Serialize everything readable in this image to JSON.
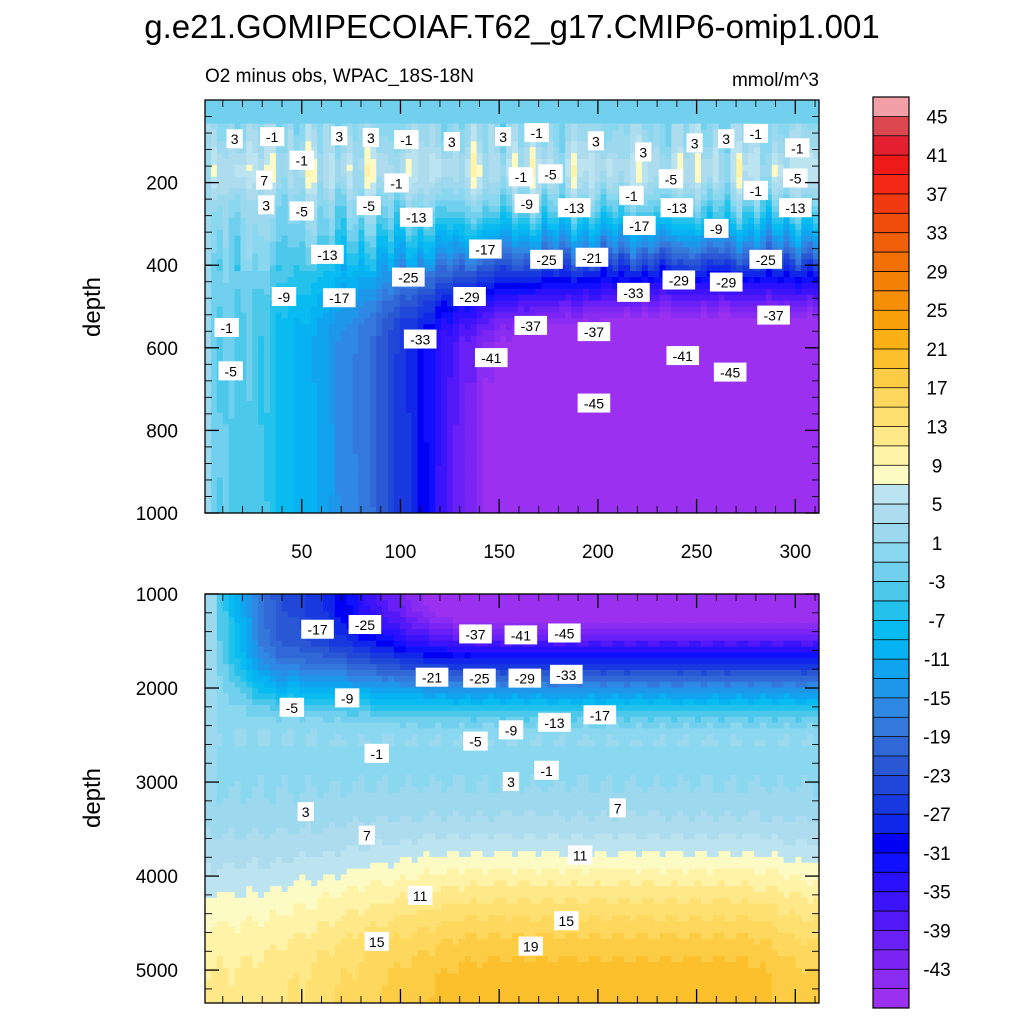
{
  "chart_data": {
    "type": "contour",
    "title": "g.e21.GOMIPECOIAF.T62_g17.CMIP6-omip1.001",
    "subtitle_left": "O2 minus obs, WPAC_18S-18N",
    "subtitle_right": "mmol/m^3",
    "ylabel": "depth",
    "colorbar": {
      "labels": [
        "45",
        "41",
        "37",
        "33",
        "29",
        "25",
        "21",
        "17",
        "13",
        "9",
        "5",
        "1",
        "-3",
        "-7",
        "-11",
        "-15",
        "-19",
        "-23",
        "-27",
        "-31",
        "-35",
        "-39",
        "-43"
      ],
      "label_values": [
        45,
        41,
        37,
        33,
        29,
        25,
        21,
        17,
        13,
        9,
        5,
        1,
        -3,
        -7,
        -11,
        -15,
        -19,
        -23,
        -27,
        -31,
        -35,
        -39,
        -43
      ],
      "level_min": -47,
      "level_max": 47,
      "level_step": 2
    },
    "panels": [
      {
        "name": "upper",
        "ylim": [
          0,
          1000
        ],
        "yticks": [
          "200",
          "400",
          "600",
          "800",
          "1000"
        ],
        "ytick_values": [
          200,
          400,
          600,
          800,
          1000
        ],
        "xlim": [
          1,
          312
        ],
        "xticks": [
          "50",
          "100",
          "150",
          "200",
          "250",
          "300"
        ],
        "xtick_values": [
          50,
          100,
          150,
          200,
          250,
          300
        ],
        "contour_labels": [
          {
            "text": "3",
            "x": 16,
            "y": 95
          },
          {
            "text": "-1",
            "x": 35,
            "y": 90
          },
          {
            "text": "3",
            "x": 69,
            "y": 88
          },
          {
            "text": "3",
            "x": 85,
            "y": 92
          },
          {
            "text": "-1",
            "x": 103,
            "y": 97
          },
          {
            "text": "3",
            "x": 126,
            "y": 102
          },
          {
            "text": "3",
            "x": 152,
            "y": 90
          },
          {
            "text": "-1",
            "x": 169,
            "y": 80
          },
          {
            "text": "3",
            "x": 199,
            "y": 100
          },
          {
            "text": "3",
            "x": 223,
            "y": 127
          },
          {
            "text": "3",
            "x": 249,
            "y": 105
          },
          {
            "text": "3",
            "x": 265,
            "y": 95
          },
          {
            "text": "-1",
            "x": 280,
            "y": 82
          },
          {
            "text": "-1",
            "x": 301,
            "y": 117
          },
          {
            "text": "-1",
            "x": 50,
            "y": 147
          },
          {
            "text": "7",
            "x": 31,
            "y": 195
          },
          {
            "text": "3",
            "x": 32,
            "y": 255
          },
          {
            "text": "-1",
            "x": 98,
            "y": 202
          },
          {
            "text": "-1",
            "x": 161,
            "y": 187
          },
          {
            "text": "-5",
            "x": 176,
            "y": 180
          },
          {
            "text": "-5",
            "x": 237,
            "y": 192
          },
          {
            "text": "-1",
            "x": 217,
            "y": 232
          },
          {
            "text": "-1",
            "x": 280,
            "y": 220
          },
          {
            "text": "-5",
            "x": 300,
            "y": 190
          },
          {
            "text": "-5",
            "x": 50,
            "y": 270
          },
          {
            "text": "-5",
            "x": 84,
            "y": 257
          },
          {
            "text": "-9",
            "x": 164,
            "y": 252
          },
          {
            "text": "-13",
            "x": 188,
            "y": 262
          },
          {
            "text": "-13",
            "x": 108,
            "y": 285
          },
          {
            "text": "-13",
            "x": 240,
            "y": 262
          },
          {
            "text": "-13",
            "x": 300,
            "y": 262
          },
          {
            "text": "-17",
            "x": 143,
            "y": 362
          },
          {
            "text": "-17",
            "x": 221,
            "y": 305
          },
          {
            "text": "-9",
            "x": 260,
            "y": 312
          },
          {
            "text": "-13",
            "x": 63,
            "y": 375
          },
          {
            "text": "-21",
            "x": 197,
            "y": 382
          },
          {
            "text": "-25",
            "x": 174,
            "y": 387
          },
          {
            "text": "-25",
            "x": 285,
            "y": 387
          },
          {
            "text": "-25",
            "x": 104,
            "y": 430
          },
          {
            "text": "-29",
            "x": 135,
            "y": 477
          },
          {
            "text": "-33",
            "x": 218,
            "y": 467
          },
          {
            "text": "-29",
            "x": 241,
            "y": 437
          },
          {
            "text": "-29",
            "x": 265,
            "y": 442
          },
          {
            "text": "-9",
            "x": 41,
            "y": 477
          },
          {
            "text": "-17",
            "x": 69,
            "y": 480
          },
          {
            "text": "-37",
            "x": 166,
            "y": 547
          },
          {
            "text": "-37",
            "x": 198,
            "y": 562
          },
          {
            "text": "-37",
            "x": 289,
            "y": 522
          },
          {
            "text": "-1",
            "x": 12,
            "y": 552
          },
          {
            "text": "-33",
            "x": 110,
            "y": 580
          },
          {
            "text": "-41",
            "x": 146,
            "y": 625
          },
          {
            "text": "-41",
            "x": 243,
            "y": 620
          },
          {
            "text": "-45",
            "x": 267,
            "y": 660
          },
          {
            "text": "-5",
            "x": 14,
            "y": 657
          },
          {
            "text": "-45",
            "x": 198,
            "y": 735
          }
        ]
      },
      {
        "name": "lower",
        "ylim": [
          1000,
          5350
        ],
        "yticks": [
          "1000",
          "2000",
          "3000",
          "4000",
          "5000"
        ],
        "ytick_values": [
          1000,
          2000,
          3000,
          4000,
          5000
        ],
        "xlim": [
          1,
          312
        ],
        "contour_labels": [
          {
            "text": "-17",
            "x": 58,
            "y": 1380
          },
          {
            "text": "-25",
            "x": 82,
            "y": 1330
          },
          {
            "text": "-37",
            "x": 138,
            "y": 1430
          },
          {
            "text": "-41",
            "x": 161,
            "y": 1440
          },
          {
            "text": "-45",
            "x": 183,
            "y": 1420
          },
          {
            "text": "-21",
            "x": 116,
            "y": 1890
          },
          {
            "text": "-25",
            "x": 140,
            "y": 1900
          },
          {
            "text": "-29",
            "x": 163,
            "y": 1900
          },
          {
            "text": "-33",
            "x": 184,
            "y": 1860
          },
          {
            "text": "-5",
            "x": 45,
            "y": 2210
          },
          {
            "text": "-9",
            "x": 73,
            "y": 2110
          },
          {
            "text": "-9",
            "x": 156,
            "y": 2450
          },
          {
            "text": "-13",
            "x": 178,
            "y": 2370
          },
          {
            "text": "-17",
            "x": 201,
            "y": 2290
          },
          {
            "text": "-5",
            "x": 138,
            "y": 2570
          },
          {
            "text": "-1",
            "x": 88,
            "y": 2700
          },
          {
            "text": "-1",
            "x": 174,
            "y": 2880
          },
          {
            "text": "3",
            "x": 156,
            "y": 3000
          },
          {
            "text": "3",
            "x": 52,
            "y": 3320
          },
          {
            "text": "7",
            "x": 210,
            "y": 3280
          },
          {
            "text": "7",
            "x": 83,
            "y": 3570
          },
          {
            "text": "11",
            "x": 191,
            "y": 3780
          },
          {
            "text": "11",
            "x": 110,
            "y": 4210
          },
          {
            "text": "15",
            "x": 184,
            "y": 4480
          },
          {
            "text": "15",
            "x": 88,
            "y": 4700
          },
          {
            "text": "19",
            "x": 166,
            "y": 4750
          }
        ]
      }
    ]
  }
}
